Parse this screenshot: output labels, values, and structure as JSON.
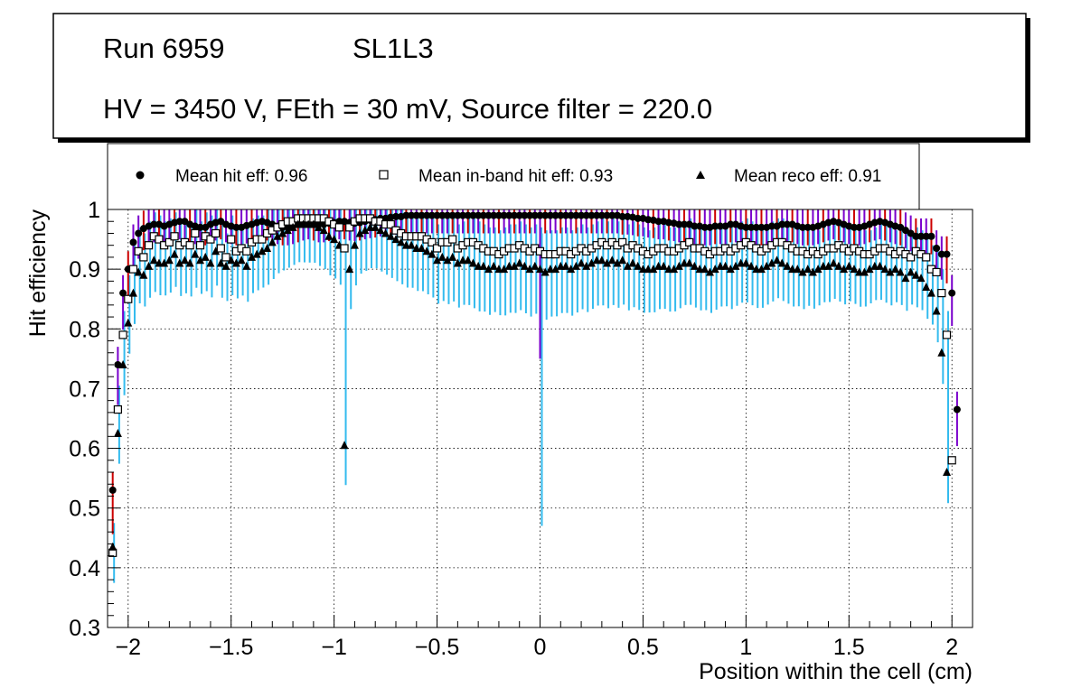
{
  "header": {
    "run": "Run 6959",
    "layer": "SL1L3",
    "conditions": "HV = 3450 V, FEth = 30 mV, Source filter = 220.0"
  },
  "legend": {
    "hit": "Mean hit  eff: 0.96",
    "inband": "Mean in-band hit eff: 0.93",
    "reco": "Mean reco eff: 0.91"
  },
  "colors": {
    "hit_err": "#cc0000",
    "hit_err_alt": "#7a00cc",
    "inband_err": "#33bbee",
    "reco_err": "#33bbee",
    "marker": "#000000"
  },
  "chart_data": {
    "type": "scatter",
    "title": "",
    "xlabel": "Position within the cell (cm)",
    "ylabel": "Hit efficiency",
    "xlim": [
      -2.1,
      2.1
    ],
    "ylim": [
      0.3,
      1.0
    ],
    "grid": true,
    "xticks": [
      {
        "v": -2,
        "label": "−2"
      },
      {
        "v": -1.5,
        "label": "−1.5"
      },
      {
        "v": -1,
        "label": "−1"
      },
      {
        "v": -0.5,
        "label": "−0.5"
      },
      {
        "v": 0,
        "label": "0"
      },
      {
        "v": 0.5,
        "label": "0.5"
      },
      {
        "v": 1,
        "label": "1"
      },
      {
        "v": 1.5,
        "label": "1.5"
      },
      {
        "v": 2,
        "label": "2"
      }
    ],
    "yticks": [
      {
        "v": 0.3,
        "label": "0.3"
      },
      {
        "v": 0.4,
        "label": "0.4"
      },
      {
        "v": 0.5,
        "label": "0.5"
      },
      {
        "v": 0.6,
        "label": "0.6"
      },
      {
        "v": 0.7,
        "label": "0.7"
      },
      {
        "v": 0.8,
        "label": "0.8"
      },
      {
        "v": 0.9,
        "label": "0.9"
      },
      {
        "v": 1.0,
        "label": "1"
      }
    ],
    "x": [
      -2.075,
      -2.05,
      -2.025,
      -2.0,
      -1.975,
      -1.95,
      -1.925,
      -1.9,
      -1.875,
      -1.85,
      -1.825,
      -1.8,
      -1.775,
      -1.75,
      -1.725,
      -1.7,
      -1.675,
      -1.65,
      -1.625,
      -1.6,
      -1.575,
      -1.55,
      -1.525,
      -1.5,
      -1.475,
      -1.45,
      -1.425,
      -1.4,
      -1.375,
      -1.35,
      -1.325,
      -1.3,
      -1.275,
      -1.25,
      -1.225,
      -1.2,
      -1.175,
      -1.15,
      -1.125,
      -1.1,
      -1.075,
      -1.05,
      -1.025,
      -1.0,
      -0.975,
      -0.95,
      -0.925,
      -0.9,
      -0.875,
      -0.85,
      -0.825,
      -0.8,
      -0.775,
      -0.75,
      -0.725,
      -0.7,
      -0.675,
      -0.65,
      -0.625,
      -0.6,
      -0.575,
      -0.55,
      -0.525,
      -0.5,
      -0.475,
      -0.45,
      -0.425,
      -0.4,
      -0.375,
      -0.35,
      -0.325,
      -0.3,
      -0.275,
      -0.25,
      -0.225,
      -0.2,
      -0.175,
      -0.15,
      -0.125,
      -0.1,
      -0.075,
      -0.05,
      -0.025,
      0.0,
      0.025,
      0.05,
      0.075,
      0.1,
      0.125,
      0.15,
      0.175,
      0.2,
      0.225,
      0.25,
      0.275,
      0.3,
      0.325,
      0.35,
      0.375,
      0.4,
      0.425,
      0.45,
      0.475,
      0.5,
      0.525,
      0.55,
      0.575,
      0.6,
      0.625,
      0.65,
      0.675,
      0.7,
      0.725,
      0.75,
      0.775,
      0.8,
      0.825,
      0.85,
      0.875,
      0.9,
      0.925,
      0.95,
      0.975,
      1.0,
      1.025,
      1.05,
      1.075,
      1.1,
      1.125,
      1.15,
      1.175,
      1.2,
      1.225,
      1.25,
      1.275,
      1.3,
      1.325,
      1.35,
      1.375,
      1.4,
      1.425,
      1.45,
      1.475,
      1.5,
      1.525,
      1.55,
      1.575,
      1.6,
      1.625,
      1.65,
      1.675,
      1.7,
      1.725,
      1.75,
      1.775,
      1.8,
      1.825,
      1.85,
      1.875,
      1.9,
      1.925,
      1.95,
      1.975,
      2.0,
      2.025,
      2.05
    ],
    "series": [
      {
        "name": "Mean hit  eff: 0.96",
        "marker": "circle",
        "values": [
          0.53,
          0.74,
          0.86,
          0.9,
          0.945,
          0.96,
          0.968,
          0.972,
          0.975,
          0.975,
          0.972,
          0.975,
          0.978,
          0.98,
          0.98,
          0.975,
          0.972,
          0.97,
          0.97,
          0.975,
          0.978,
          0.98,
          0.975,
          0.972,
          0.97,
          0.97,
          0.973,
          0.975,
          0.978,
          0.98,
          0.978,
          0.975,
          0.972,
          0.97,
          0.97,
          0.972,
          0.975,
          0.978,
          0.98,
          0.978,
          0.975,
          0.975,
          0.977,
          0.978,
          0.98,
          0.98,
          0.978,
          0.977,
          0.978,
          0.98,
          0.982,
          0.983,
          0.985,
          0.985,
          0.987,
          0.988,
          0.988,
          0.99,
          0.99,
          0.99,
          0.99,
          0.99,
          0.99,
          0.99,
          0.99,
          0.99,
          0.99,
          0.99,
          0.99,
          0.99,
          0.99,
          0.99,
          0.99,
          0.99,
          0.99,
          0.99,
          0.99,
          0.99,
          0.99,
          0.99,
          0.99,
          0.99,
          0.99,
          0.99,
          0.99,
          0.99,
          0.99,
          0.99,
          0.99,
          0.99,
          0.99,
          0.99,
          0.99,
          0.99,
          0.99,
          0.99,
          0.99,
          0.99,
          0.99,
          0.988,
          0.988,
          0.987,
          0.985,
          0.985,
          0.983,
          0.982,
          0.98,
          0.98,
          0.978,
          0.977,
          0.975,
          0.975,
          0.975,
          0.972,
          0.972,
          0.97,
          0.97,
          0.972,
          0.972,
          0.972,
          0.975,
          0.975,
          0.972,
          0.97,
          0.97,
          0.97,
          0.97,
          0.97,
          0.972,
          0.972,
          0.975,
          0.975,
          0.975,
          0.972,
          0.97,
          0.97,
          0.97,
          0.972,
          0.975,
          0.978,
          0.98,
          0.978,
          0.975,
          0.972,
          0.97,
          0.97,
          0.972,
          0.975,
          0.978,
          0.98,
          0.978,
          0.975,
          0.972,
          0.97,
          0.965,
          0.96,
          0.955,
          0.955,
          0.955,
          0.955,
          0.935,
          0.925,
          0.925,
          0.86,
          0.665
        ]
      },
      {
        "name": "Mean in-band hit eff: 0.93",
        "marker": "square",
        "values": [
          0.425,
          0.665,
          0.79,
          0.85,
          0.9,
          0.93,
          0.92,
          0.94,
          0.955,
          0.95,
          0.94,
          0.945,
          0.955,
          0.94,
          0.945,
          0.94,
          0.96,
          0.94,
          0.955,
          0.95,
          0.96,
          0.935,
          0.92,
          0.95,
          0.93,
          0.935,
          0.93,
          0.945,
          0.95,
          0.95,
          0.96,
          0.965,
          0.97,
          0.975,
          0.98,
          0.98,
          0.985,
          0.985,
          0.985,
          0.985,
          0.985,
          0.985,
          0.98,
          0.975,
          0.97,
          0.935,
          0.97,
          0.98,
          0.985,
          0.985,
          0.985,
          0.98,
          0.98,
          0.975,
          0.975,
          0.965,
          0.96,
          0.955,
          0.955,
          0.955,
          0.955,
          0.95,
          0.945,
          0.935,
          0.945,
          0.945,
          0.95,
          0.935,
          0.94,
          0.945,
          0.945,
          0.94,
          0.935,
          0.93,
          0.93,
          0.925,
          0.93,
          0.935,
          0.935,
          0.94,
          0.935,
          0.93,
          0.935,
          0.93,
          0.925,
          0.925,
          0.925,
          0.93,
          0.93,
          0.925,
          0.93,
          0.935,
          0.93,
          0.935,
          0.94,
          0.945,
          0.94,
          0.945,
          0.94,
          0.945,
          0.935,
          0.94,
          0.935,
          0.93,
          0.925,
          0.93,
          0.935,
          0.935,
          0.93,
          0.93,
          0.935,
          0.94,
          0.945,
          0.935,
          0.935,
          0.93,
          0.925,
          0.93,
          0.93,
          0.935,
          0.93,
          0.935,
          0.94,
          0.945,
          0.94,
          0.935,
          0.93,
          0.935,
          0.94,
          0.945,
          0.945,
          0.94,
          0.935,
          0.93,
          0.93,
          0.925,
          0.93,
          0.925,
          0.93,
          0.935,
          0.935,
          0.94,
          0.935,
          0.93,
          0.935,
          0.93,
          0.925,
          0.925,
          0.93,
          0.935,
          0.935,
          0.93,
          0.925,
          0.93,
          0.925,
          0.92,
          0.93,
          0.925,
          0.92,
          0.9,
          0.895,
          0.86,
          0.79,
          0.58
        ]
      },
      {
        "name": "Mean reco eff: 0.91",
        "marker": "triangle",
        "values": [
          0.435,
          0.625,
          0.74,
          0.81,
          0.86,
          0.895,
          0.89,
          0.905,
          0.915,
          0.91,
          0.91,
          0.915,
          0.925,
          0.91,
          0.915,
          0.91,
          0.925,
          0.915,
          0.92,
          0.91,
          0.93,
          0.91,
          0.905,
          0.915,
          0.91,
          0.915,
          0.905,
          0.92,
          0.925,
          0.93,
          0.935,
          0.945,
          0.955,
          0.96,
          0.965,
          0.97,
          0.975,
          0.975,
          0.975,
          0.975,
          0.97,
          0.965,
          0.955,
          0.95,
          0.94,
          0.605,
          0.9,
          0.94,
          0.96,
          0.965,
          0.97,
          0.97,
          0.965,
          0.96,
          0.955,
          0.95,
          0.945,
          0.94,
          0.94,
          0.935,
          0.935,
          0.93,
          0.925,
          0.915,
          0.92,
          0.915,
          0.92,
          0.91,
          0.915,
          0.915,
          0.91,
          0.905,
          0.905,
          0.9,
          0.905,
          0.9,
          0.9,
          0.905,
          0.905,
          0.91,
          0.905,
          0.9,
          0.905,
          0.9,
          0.895,
          0.9,
          0.9,
          0.905,
          0.905,
          0.9,
          0.905,
          0.91,
          0.905,
          0.91,
          0.915,
          0.915,
          0.91,
          0.915,
          0.91,
          0.915,
          0.905,
          0.91,
          0.905,
          0.9,
          0.9,
          0.9,
          0.905,
          0.905,
          0.9,
          0.9,
          0.905,
          0.91,
          0.91,
          0.905,
          0.9,
          0.9,
          0.895,
          0.9,
          0.905,
          0.905,
          0.9,
          0.905,
          0.91,
          0.91,
          0.905,
          0.9,
          0.9,
          0.905,
          0.91,
          0.915,
          0.91,
          0.905,
          0.9,
          0.9,
          0.895,
          0.9,
          0.895,
          0.9,
          0.905,
          0.905,
          0.91,
          0.905,
          0.9,
          0.905,
          0.9,
          0.895,
          0.895,
          0.9,
          0.905,
          0.905,
          0.9,
          0.895,
          0.9,
          0.895,
          0.885,
          0.895,
          0.89,
          0.885,
          0.87,
          0.86,
          0.83,
          0.76,
          0.56
        ]
      }
    ]
  }
}
